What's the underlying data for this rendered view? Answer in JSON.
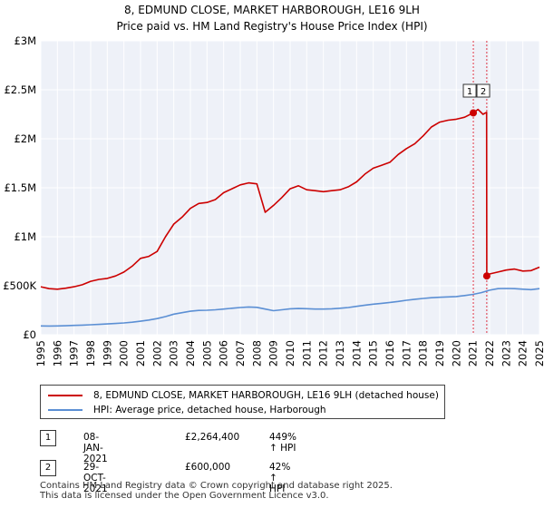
{
  "chart_data": {
    "type": "line",
    "title": "8, EDMUND CLOSE, MARKET HARBOROUGH, LE16 9LH",
    "subtitle": "Price paid vs. HM Land Registry's House Price Index (HPI)",
    "xlabel": "",
    "ylabel": "",
    "xlim": [
      1995,
      2025
    ],
    "ylim": [
      0,
      3000000
    ],
    "x_ticks": [
      "1995",
      "1996",
      "1997",
      "1998",
      "1999",
      "2000",
      "2001",
      "2002",
      "2003",
      "2004",
      "2005",
      "2006",
      "2007",
      "2008",
      "2009",
      "2010",
      "2011",
      "2012",
      "2013",
      "2014",
      "2015",
      "2016",
      "2017",
      "2018",
      "2019",
      "2020",
      "2021",
      "2022",
      "2023",
      "2024",
      "2025"
    ],
    "y_ticks": [
      {
        "value": 0,
        "label": "£0"
      },
      {
        "value": 500000,
        "label": "£500K"
      },
      {
        "value": 1000000,
        "label": "£1M"
      },
      {
        "value": 1500000,
        "label": "£1.5M"
      },
      {
        "value": 2000000,
        "label": "£2M"
      },
      {
        "value": 2500000,
        "label": "£2.5M"
      },
      {
        "value": 3000000,
        "label": "£3M"
      }
    ],
    "grid": true,
    "series": [
      {
        "name": "8, EDMUND CLOSE, MARKET HARBOROUGH, LE16 9LH (detached house)",
        "color": "#cc0000",
        "x": [
          1995.0,
          1995.5,
          1996.0,
          1996.5,
          1997.0,
          1997.5,
          1998.0,
          1998.5,
          1999.0,
          1999.5,
          2000.0,
          2000.5,
          2001.0,
          2001.5,
          2002.0,
          2002.5,
          2003.0,
          2003.5,
          2004.0,
          2004.5,
          2005.0,
          2005.5,
          2006.0,
          2006.5,
          2007.0,
          2007.5,
          2008.0,
          2008.5,
          2009.0,
          2009.5,
          2010.0,
          2010.5,
          2011.0,
          2011.5,
          2012.0,
          2012.5,
          2013.0,
          2013.5,
          2014.0,
          2014.5,
          2015.0,
          2015.5,
          2016.0,
          2016.5,
          2017.0,
          2017.5,
          2018.0,
          2018.5,
          2019.0,
          2019.5,
          2020.0,
          2020.5,
          2021.02,
          2021.3,
          2021.6,
          2021.82,
          2021.83,
          2022.0,
          2022.5,
          2023.0,
          2023.5,
          2024.0,
          2024.5,
          2025.0
        ],
        "y": [
          490000,
          470000,
          465000,
          475000,
          490000,
          510000,
          545000,
          565000,
          575000,
          600000,
          640000,
          700000,
          780000,
          800000,
          850000,
          1000000,
          1130000,
          1200000,
          1290000,
          1340000,
          1350000,
          1380000,
          1450000,
          1490000,
          1530000,
          1550000,
          1540000,
          1250000,
          1320000,
          1400000,
          1490000,
          1520000,
          1480000,
          1470000,
          1460000,
          1470000,
          1480000,
          1510000,
          1560000,
          1640000,
          1700000,
          1730000,
          1760000,
          1840000,
          1900000,
          1950000,
          2030000,
          2120000,
          2170000,
          2190000,
          2200000,
          2220000,
          2264400,
          2300000,
          2250000,
          2270000,
          600000,
          620000,
          640000,
          660000,
          670000,
          650000,
          655000,
          690000
        ]
      },
      {
        "name": "HPI: Average price, detached house, Harborough",
        "color": "#5b8fd4",
        "x": [
          1995.0,
          1995.5,
          1996.0,
          1996.5,
          1997.0,
          1997.5,
          1998.0,
          1998.5,
          1999.0,
          1999.5,
          2000.0,
          2000.5,
          2001.0,
          2001.5,
          2002.0,
          2002.5,
          2003.0,
          2003.5,
          2004.0,
          2004.5,
          2005.0,
          2005.5,
          2006.0,
          2006.5,
          2007.0,
          2007.5,
          2008.0,
          2008.5,
          2009.0,
          2009.5,
          2010.0,
          2010.5,
          2011.0,
          2011.5,
          2012.0,
          2012.5,
          2013.0,
          2013.5,
          2014.0,
          2014.5,
          2015.0,
          2015.5,
          2016.0,
          2016.5,
          2017.0,
          2017.5,
          2018.0,
          2018.5,
          2019.0,
          2019.5,
          2020.0,
          2020.5,
          2021.0,
          2021.5,
          2022.0,
          2022.5,
          2023.0,
          2023.5,
          2024.0,
          2024.5,
          2025.0
        ],
        "y": [
          90000,
          89000,
          90000,
          92000,
          95000,
          98000,
          102000,
          106000,
          110000,
          115000,
          120000,
          128000,
          138000,
          150000,
          165000,
          185000,
          210000,
          225000,
          240000,
          248000,
          250000,
          255000,
          262000,
          270000,
          278000,
          283000,
          280000,
          262000,
          245000,
          255000,
          265000,
          268000,
          266000,
          262000,
          262000,
          265000,
          270000,
          278000,
          290000,
          302000,
          312000,
          320000,
          330000,
          340000,
          352000,
          362000,
          370000,
          378000,
          382000,
          386000,
          390000,
          400000,
          412000,
          430000,
          455000,
          470000,
          472000,
          470000,
          465000,
          460000,
          470000
        ]
      }
    ],
    "events": [
      {
        "label": "1",
        "x": 2021.02
      },
      {
        "label": "2",
        "x": 2021.83
      }
    ],
    "markers": [
      {
        "x": 2021.02,
        "y": 2264400
      },
      {
        "x": 2021.83,
        "y": 600000
      }
    ]
  },
  "legend": {
    "property_label": "8, EDMUND CLOSE, MARKET HARBOROUGH, LE16 9LH (detached house)",
    "hpi_label": "HPI: Average price, detached house, Harborough",
    "property_color": "#cc0000",
    "hpi_color": "#5b8fd4"
  },
  "transactions": [
    {
      "num": "1",
      "date": "08-JAN-2021",
      "price": "£2,264,400",
      "hpi": "449% ↑ HPI"
    },
    {
      "num": "2",
      "date": "29-OCT-2021",
      "price": "£600,000",
      "hpi": "42% ↑ HPI"
    }
  ],
  "footer": {
    "line1": "Contains HM Land Registry data © Crown copyright and database right 2025.",
    "line2": "This data is licensed under the Open Government Licence v3.0."
  }
}
